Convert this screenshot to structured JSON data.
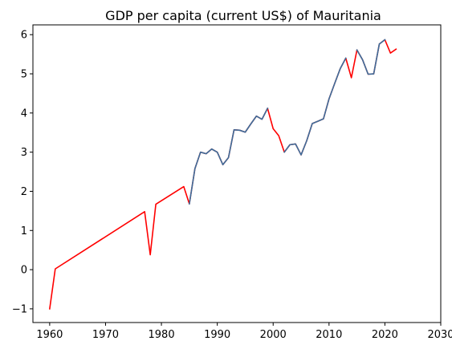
{
  "chart_data": {
    "type": "line",
    "title": "GDP per capita (current US$) of Mauritania",
    "xlabel": "",
    "ylabel": "",
    "xlim": [
      1957,
      2030
    ],
    "ylim": [
      -1.35,
      6.25
    ],
    "xticks": [
      1960,
      1970,
      1980,
      1990,
      2000,
      2010,
      2020,
      2030
    ],
    "yticks": [
      -1,
      0,
      1,
      2,
      3,
      4,
      5,
      6
    ],
    "grid": false,
    "series": [
      {
        "color": "#ff0000",
        "x": [
          1960,
          1961,
          1977,
          1978,
          1979,
          1984,
          1985,
          1986,
          1987,
          1988,
          1989,
          1990,
          1991,
          1992,
          1993,
          1994,
          1995,
          1996,
          1997,
          1998,
          1999,
          2000,
          2001,
          2002,
          2003,
          2004,
          2005,
          2006,
          2007,
          2008,
          2009,
          2010,
          2011,
          2012,
          2013,
          2014,
          2015,
          2016,
          2017,
          2018,
          2019,
          2020,
          2021,
          2022
        ],
        "y": [
          -1.0,
          0.02,
          1.48,
          0.38,
          1.67,
          2.12,
          1.68,
          2.58,
          3.0,
          2.96,
          3.08,
          3.0,
          2.68,
          2.86,
          3.57,
          3.56,
          3.51,
          3.72,
          3.92,
          3.84,
          4.12,
          3.6,
          3.42,
          3.0,
          3.19,
          3.21,
          2.93,
          3.29,
          3.73,
          3.79,
          3.85,
          4.36,
          4.75,
          5.13,
          5.4,
          4.9,
          5.61,
          5.36,
          4.99,
          5.0,
          5.76,
          5.87,
          5.53,
          5.63
        ]
      },
      {
        "color": "#3b6e9c",
        "segments": [
          {
            "x": [
              1985,
              1986,
              1987,
              1988,
              1989,
              1990,
              1991,
              1992,
              1993,
              1994,
              1995,
              1996,
              1997,
              1998,
              1999
            ],
            "y": [
              1.68,
              2.58,
              3.0,
              2.96,
              3.08,
              3.0,
              2.68,
              2.86,
              3.57,
              3.56,
              3.51,
              3.72,
              3.92,
              3.84,
              4.12
            ]
          },
          {
            "x": [
              2002,
              2003,
              2004,
              2005,
              2006,
              2007,
              2008,
              2009,
              2010,
              2011,
              2012,
              2013
            ],
            "y": [
              3.0,
              3.19,
              3.21,
              2.93,
              3.29,
              3.73,
              3.79,
              3.85,
              4.36,
              4.75,
              5.13,
              5.4
            ]
          },
          {
            "x": [
              2015,
              2016,
              2017,
              2018,
              2019,
              2020
            ],
            "y": [
              5.61,
              5.36,
              4.99,
              5.0,
              5.76,
              5.87
            ]
          }
        ]
      }
    ]
  }
}
